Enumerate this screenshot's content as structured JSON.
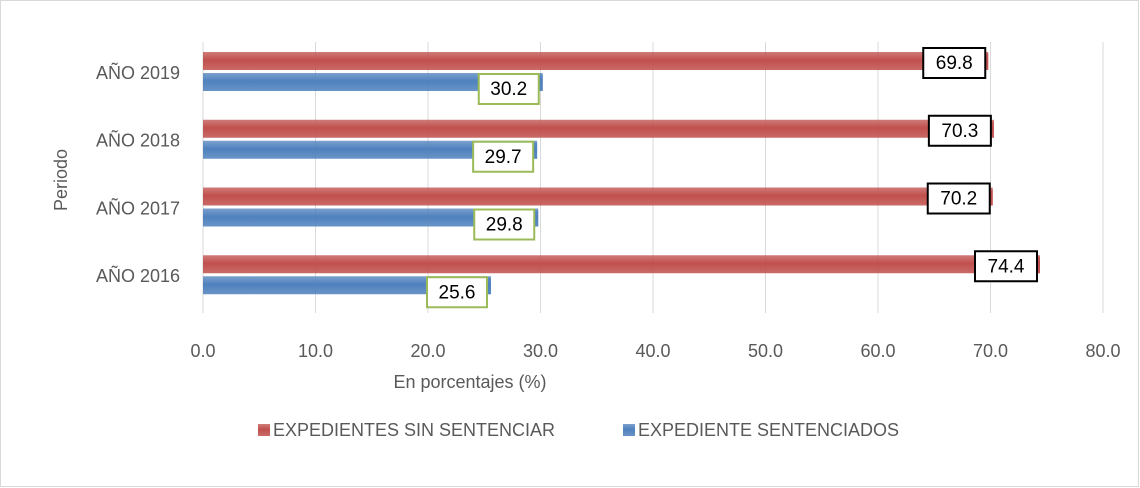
{
  "chart_data": {
    "type": "bar",
    "orientation": "horizontal",
    "x_label": "En porcentajes (%)",
    "y_label": "Periodo",
    "categories": [
      "AÑO 2016",
      "AÑO 2017",
      "AÑO 2018",
      "AÑO 2019"
    ],
    "series": [
      {
        "name": "EXPEDIENTES SIN SENTENCIAR",
        "color": "#c0504d",
        "values": [
          74.4,
          70.2,
          70.3,
          69.8
        ]
      },
      {
        "name": "EXPEDIENTE SENTENCIADOS",
        "color": "#4f81bd",
        "values": [
          25.6,
          29.8,
          29.7,
          30.2
        ]
      }
    ],
    "xlim": [
      0,
      80
    ],
    "xticks": [
      {
        "value": 0,
        "label": "0.0"
      },
      {
        "value": 10,
        "label": "10.0"
      },
      {
        "value": 20,
        "label": "20.0"
      },
      {
        "value": 30,
        "label": "30.0"
      },
      {
        "value": 40,
        "label": "40.0"
      },
      {
        "value": 50,
        "label": "50.0"
      },
      {
        "value": 60,
        "label": "60.0"
      },
      {
        "value": 70,
        "label": "70.0"
      },
      {
        "value": 80,
        "label": "80.0"
      }
    ],
    "grid": true,
    "legend": "bottom"
  }
}
